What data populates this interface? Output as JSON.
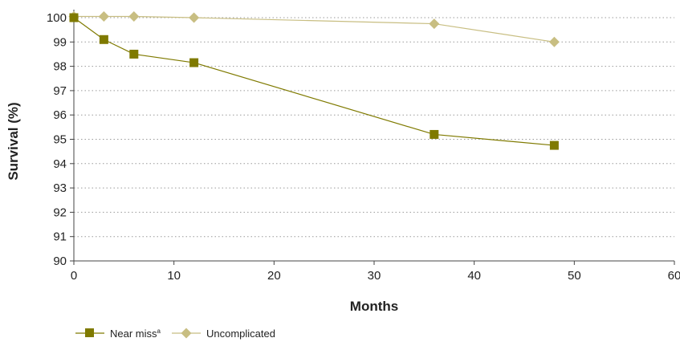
{
  "chart_data": {
    "type": "line",
    "xlabel": "Months",
    "ylabel": "Survival (%)",
    "xlim": [
      0,
      60
    ],
    "ylim": [
      90,
      100
    ],
    "x_ticks": [
      "0",
      "10",
      "20",
      "30",
      "40",
      "50",
      "60"
    ],
    "y_ticks": [
      "90",
      "91",
      "92",
      "93",
      "94",
      "95",
      "96",
      "97",
      "98",
      "99",
      "100"
    ],
    "grid": "horizontal-dotted",
    "legend_position": "bottom-left",
    "series": [
      {
        "name": "Near miss",
        "name_superscript": "a",
        "marker": "square",
        "color": "#7f7a00",
        "points": [
          {
            "x": 0,
            "y": 100
          },
          {
            "x": 3,
            "y": 99.1
          },
          {
            "x": 6,
            "y": 98.5
          },
          {
            "x": 12,
            "y": 98.15
          },
          {
            "x": 36,
            "y": 95.2
          },
          {
            "x": 48,
            "y": 94.75
          }
        ]
      },
      {
        "name": "Uncomplicated",
        "marker": "diamond",
        "color": "#c8be82",
        "points": [
          {
            "x": 0,
            "y": 100.05
          },
          {
            "x": 3,
            "y": 100.05
          },
          {
            "x": 6,
            "y": 100.05
          },
          {
            "x": 12,
            "y": 100.0
          },
          {
            "x": 36,
            "y": 99.75
          },
          {
            "x": 48,
            "y": 99.0
          }
        ]
      }
    ]
  }
}
